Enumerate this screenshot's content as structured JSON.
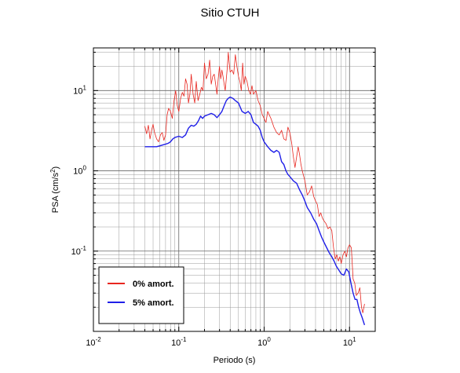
{
  "chart_data": {
    "type": "line",
    "title": "Sitio CTUH",
    "xlabel": "Periodo (s)",
    "ylabel_base": "PSA (cm/s",
    "ylabel_sup": "2",
    "ylabel_tail": ")",
    "x_scale": "log",
    "y_scale": "log",
    "xlim": [
      0.01,
      20
    ],
    "ylim": [
      0.01,
      34
    ],
    "grid": true,
    "legend_position": "bottom-left",
    "x_ticks": [
      {
        "base": "10",
        "exp": "-2"
      },
      {
        "base": "10",
        "exp": "-1"
      },
      {
        "base": "10",
        "exp": "0"
      },
      {
        "base": "10",
        "exp": "1"
      }
    ],
    "y_ticks": [
      {
        "base": "10",
        "exp": "-1"
      },
      {
        "base": "10",
        "exp": "0"
      },
      {
        "base": "10",
        "exp": "1"
      }
    ],
    "series": [
      {
        "name": "0% amort.",
        "color": "#e8261f",
        "points": [
          [
            0.04,
            3.6
          ],
          [
            0.042,
            2.9
          ],
          [
            0.044,
            3.7
          ],
          [
            0.046,
            2.5
          ],
          [
            0.048,
            3.2
          ],
          [
            0.05,
            3.8
          ],
          [
            0.052,
            3.0
          ],
          [
            0.055,
            2.5
          ],
          [
            0.058,
            2.3
          ],
          [
            0.061,
            2.8
          ],
          [
            0.064,
            3.0
          ],
          [
            0.067,
            2.4
          ],
          [
            0.07,
            2.8
          ],
          [
            0.073,
            5.0
          ],
          [
            0.076,
            6.0
          ],
          [
            0.08,
            5.5
          ],
          [
            0.084,
            4.5
          ],
          [
            0.088,
            7.5
          ],
          [
            0.092,
            10.0
          ],
          [
            0.096,
            6.5
          ],
          [
            0.1,
            5.5
          ],
          [
            0.105,
            8.0
          ],
          [
            0.11,
            9.5
          ],
          [
            0.115,
            8.5
          ],
          [
            0.12,
            14.0
          ],
          [
            0.125,
            12.0
          ],
          [
            0.13,
            7.0
          ],
          [
            0.135,
            9.0
          ],
          [
            0.14,
            16.0
          ],
          [
            0.147,
            9.0
          ],
          [
            0.154,
            7.0
          ],
          [
            0.16,
            13.0
          ],
          [
            0.168,
            7.5
          ],
          [
            0.176,
            9.0
          ],
          [
            0.184,
            11.0
          ],
          [
            0.192,
            10.0
          ],
          [
            0.2,
            22.0
          ],
          [
            0.21,
            14.0
          ],
          [
            0.22,
            16.0
          ],
          [
            0.23,
            24.0
          ],
          [
            0.24,
            12.0
          ],
          [
            0.25,
            15.0
          ],
          [
            0.26,
            16.0
          ],
          [
            0.27,
            12.0
          ],
          [
            0.28,
            9.0
          ],
          [
            0.29,
            14.0
          ],
          [
            0.3,
            20.0
          ],
          [
            0.31,
            14.0
          ],
          [
            0.32,
            18.0
          ],
          [
            0.33,
            15.0
          ],
          [
            0.34,
            12.0
          ],
          [
            0.35,
            10.0
          ],
          [
            0.36,
            14.0
          ],
          [
            0.37,
            19.0
          ],
          [
            0.38,
            30.0
          ],
          [
            0.39,
            22.0
          ],
          [
            0.4,
            17.0
          ],
          [
            0.42,
            18.0
          ],
          [
            0.44,
            16.0
          ],
          [
            0.46,
            28.0
          ],
          [
            0.48,
            20.0
          ],
          [
            0.5,
            15.0
          ],
          [
            0.52,
            13.0
          ],
          [
            0.54,
            10.0
          ],
          [
            0.56,
            22.0
          ],
          [
            0.58,
            12.0
          ],
          [
            0.6,
            15.0
          ],
          [
            0.63,
            13.0
          ],
          [
            0.66,
            10.0
          ],
          [
            0.69,
            9.0
          ],
          [
            0.72,
            11.5
          ],
          [
            0.75,
            9.0
          ],
          [
            0.8,
            10.0
          ],
          [
            0.85,
            7.5
          ],
          [
            0.9,
            6.5
          ],
          [
            0.95,
            5.0
          ],
          [
            1.0,
            4.5
          ],
          [
            1.05,
            4.0
          ],
          [
            1.1,
            5.5
          ],
          [
            1.2,
            4.5
          ],
          [
            1.3,
            3.5
          ],
          [
            1.4,
            3.0
          ],
          [
            1.5,
            2.8
          ],
          [
            1.6,
            3.2
          ],
          [
            1.7,
            2.5
          ],
          [
            1.8,
            2.4
          ],
          [
            1.9,
            3.5
          ],
          [
            2.0,
            3.0
          ],
          [
            2.1,
            2.2
          ],
          [
            2.2,
            1.5
          ],
          [
            2.3,
            1.1
          ],
          [
            2.4,
            1.5
          ],
          [
            2.5,
            2.0
          ],
          [
            2.6,
            1.6
          ],
          [
            2.7,
            1.2
          ],
          [
            2.8,
            1.0
          ],
          [
            3.0,
            0.75
          ],
          [
            3.2,
            0.5
          ],
          [
            3.4,
            0.55
          ],
          [
            3.6,
            0.65
          ],
          [
            3.8,
            0.48
          ],
          [
            4.0,
            0.42
          ],
          [
            4.2,
            0.38
          ],
          [
            4.4,
            0.27
          ],
          [
            4.6,
            0.3
          ],
          [
            4.8,
            0.26
          ],
          [
            5.0,
            0.24
          ],
          [
            5.3,
            0.22
          ],
          [
            5.6,
            0.19
          ],
          [
            5.9,
            0.2
          ],
          [
            6.2,
            0.18
          ],
          [
            6.5,
            0.11
          ],
          [
            6.8,
            0.08
          ],
          [
            7.1,
            0.09
          ],
          [
            7.4,
            0.075
          ],
          [
            7.7,
            0.085
          ],
          [
            8.0,
            0.07
          ],
          [
            8.4,
            0.09
          ],
          [
            8.8,
            0.1
          ],
          [
            9.2,
            0.085
          ],
          [
            9.6,
            0.11
          ],
          [
            10.0,
            0.12
          ],
          [
            10.5,
            0.11
          ],
          [
            11.0,
            0.045
          ],
          [
            11.5,
            0.04
          ],
          [
            12.0,
            0.028
          ],
          [
            12.6,
            0.03
          ],
          [
            13.2,
            0.035
          ],
          [
            13.8,
            0.02
          ],
          [
            14.3,
            0.017
          ],
          [
            15.0,
            0.022
          ]
        ]
      },
      {
        "name": "5% amort.",
        "color": "#1f1fe8",
        "points": [
          [
            0.04,
            2.0
          ],
          [
            0.045,
            2.0
          ],
          [
            0.05,
            2.0
          ],
          [
            0.055,
            2.0
          ],
          [
            0.06,
            2.05
          ],
          [
            0.065,
            2.1
          ],
          [
            0.07,
            2.15
          ],
          [
            0.075,
            2.2
          ],
          [
            0.08,
            2.3
          ],
          [
            0.085,
            2.5
          ],
          [
            0.09,
            2.6
          ],
          [
            0.1,
            2.7
          ],
          [
            0.11,
            2.6
          ],
          [
            0.12,
            2.8
          ],
          [
            0.13,
            3.4
          ],
          [
            0.14,
            3.7
          ],
          [
            0.15,
            3.6
          ],
          [
            0.16,
            3.8
          ],
          [
            0.17,
            4.2
          ],
          [
            0.18,
            4.8
          ],
          [
            0.19,
            4.5
          ],
          [
            0.2,
            4.8
          ],
          [
            0.22,
            5.0
          ],
          [
            0.24,
            5.2
          ],
          [
            0.26,
            5.0
          ],
          [
            0.28,
            4.6
          ],
          [
            0.3,
            5.0
          ],
          [
            0.32,
            5.5
          ],
          [
            0.34,
            6.5
          ],
          [
            0.36,
            7.5
          ],
          [
            0.38,
            8.0
          ],
          [
            0.4,
            8.3
          ],
          [
            0.43,
            8.0
          ],
          [
            0.46,
            7.5
          ],
          [
            0.5,
            7.0
          ],
          [
            0.55,
            5.5
          ],
          [
            0.6,
            5.2
          ],
          [
            0.65,
            5.5
          ],
          [
            0.7,
            5.0
          ],
          [
            0.75,
            4.0
          ],
          [
            0.8,
            3.8
          ],
          [
            0.85,
            3.6
          ],
          [
            0.9,
            3.2
          ],
          [
            0.95,
            2.6
          ],
          [
            1.0,
            2.3
          ],
          [
            1.1,
            2.0
          ],
          [
            1.2,
            1.8
          ],
          [
            1.3,
            1.7
          ],
          [
            1.4,
            1.8
          ],
          [
            1.5,
            1.7
          ],
          [
            1.6,
            1.3
          ],
          [
            1.7,
            1.2
          ],
          [
            1.8,
            1.0
          ],
          [
            1.9,
            0.9
          ],
          [
            2.0,
            0.85
          ],
          [
            2.2,
            0.75
          ],
          [
            2.4,
            0.7
          ],
          [
            2.6,
            0.58
          ],
          [
            2.8,
            0.5
          ],
          [
            3.0,
            0.42
          ],
          [
            3.2,
            0.35
          ],
          [
            3.5,
            0.3
          ],
          [
            3.8,
            0.25
          ],
          [
            4.1,
            0.22
          ],
          [
            4.4,
            0.18
          ],
          [
            4.7,
            0.15
          ],
          [
            5.0,
            0.13
          ],
          [
            5.4,
            0.11
          ],
          [
            5.8,
            0.095
          ],
          [
            6.2,
            0.085
          ],
          [
            6.6,
            0.075
          ],
          [
            7.0,
            0.065
          ],
          [
            7.5,
            0.058
          ],
          [
            8.0,
            0.052
          ],
          [
            8.6,
            0.05
          ],
          [
            9.2,
            0.06
          ],
          [
            9.8,
            0.055
          ],
          [
            10.4,
            0.04
          ],
          [
            11.0,
            0.03
          ],
          [
            11.6,
            0.025
          ],
          [
            12.2,
            0.025
          ],
          [
            12.8,
            0.02
          ],
          [
            13.4,
            0.017
          ],
          [
            14.0,
            0.015
          ],
          [
            15.0,
            0.012
          ]
        ]
      }
    ]
  }
}
